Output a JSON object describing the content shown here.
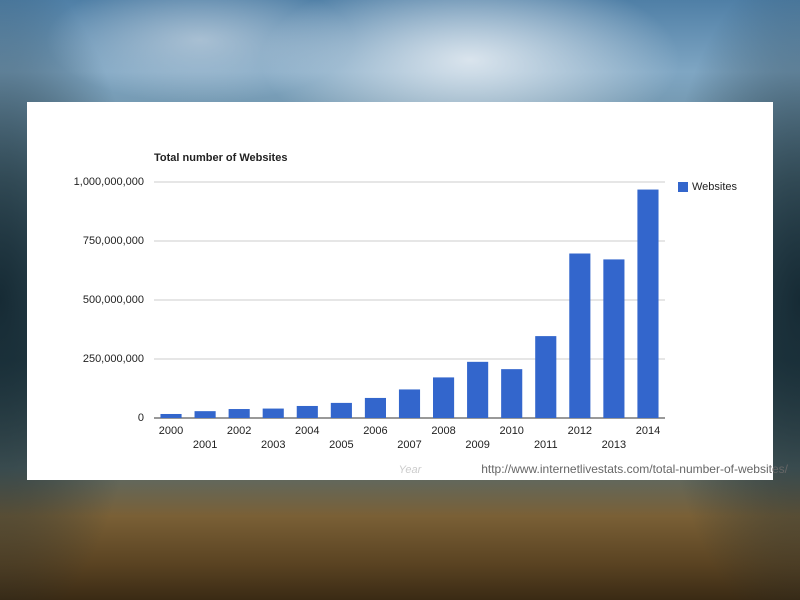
{
  "chart_data": {
    "type": "bar",
    "title": "Total number of Websites",
    "x_label": "Year",
    "source": "http://www.internetlivestats.com/total-number-of-websites/",
    "categories": [
      "2000",
      "2001",
      "2002",
      "2003",
      "2004",
      "2005",
      "2006",
      "2007",
      "2008",
      "2009",
      "2010",
      "2011",
      "2012",
      "2013",
      "2014"
    ],
    "series": [
      {
        "name": "Websites",
        "color": "#3366cc",
        "values": [
          17000000,
          29000000,
          38000000,
          40000000,
          51000000,
          64000000,
          85000000,
          121000000,
          172000000,
          238000000,
          207000000,
          347000000,
          697000000,
          672000000,
          968000000
        ]
      }
    ],
    "ylim": [
      0,
      1000000000
    ],
    "yticks": [
      0,
      {
        "value": 250000000,
        "label": "250,000,000"
      },
      {
        "value": 500000000,
        "label": "500,000,000"
      },
      {
        "value": 750000000,
        "label": "750,000,000"
      },
      {
        "value": 1000000000,
        "label": "1,000,000,000"
      }
    ],
    "grid": true,
    "legend": "right"
  }
}
